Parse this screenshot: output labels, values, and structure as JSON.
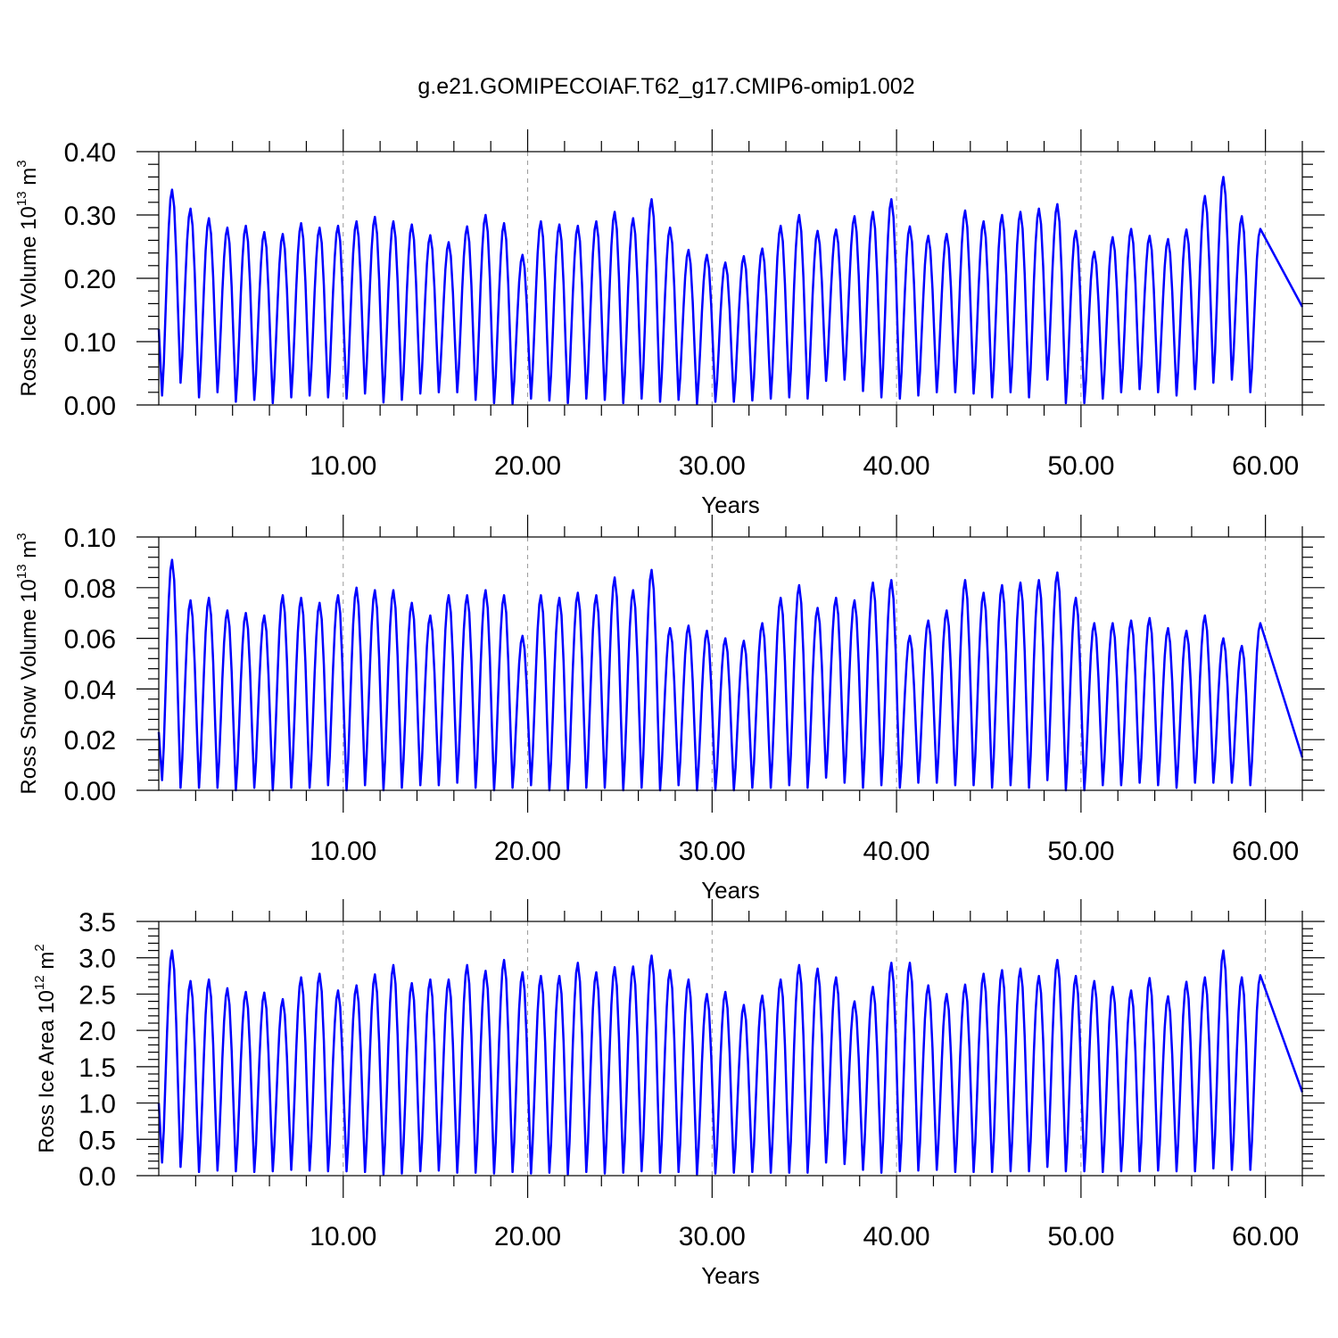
{
  "figure": {
    "title": "g.e21.GOMIPECOIAF.T62_g17.CMIP6-omip1.002"
  },
  "chart_data": [
    {
      "type": "line",
      "ylabel_main": "Ross Ice Volume 10",
      "ylabel_exp": "13",
      "ylabel_unit": " m",
      "ylabel_unit_exp": "3",
      "xlabel": "Years",
      "xlim": [
        0,
        62
      ],
      "ylim": [
        0,
        0.4
      ],
      "xticks": [
        10,
        20,
        30,
        40,
        50,
        60
      ],
      "xtick_labels": [
        "10.00",
        "20.00",
        "30.00",
        "40.00",
        "50.00",
        "60.00"
      ],
      "yticks": [
        0,
        0.1,
        0.2,
        0.3,
        0.4
      ],
      "ytick_labels": [
        "0.00",
        "0.10",
        "0.20",
        "0.30",
        "0.40"
      ],
      "grid": "x-dashed",
      "color": "#0000ff",
      "start_value": 0.12,
      "end_value": 0.155,
      "annual_max": [
        0.34,
        0.31,
        0.295,
        0.28,
        0.283,
        0.273,
        0.27,
        0.287,
        0.28,
        0.283,
        0.29,
        0.297,
        0.29,
        0.285,
        0.268,
        0.257,
        0.282,
        0.3,
        0.287,
        0.237,
        0.29,
        0.285,
        0.283,
        0.29,
        0.305,
        0.295,
        0.325,
        0.28,
        0.245,
        0.237,
        0.225,
        0.235,
        0.247,
        0.283,
        0.3,
        0.275,
        0.277,
        0.298,
        0.305,
        0.325,
        0.282,
        0.267,
        0.27,
        0.307,
        0.29,
        0.3,
        0.305,
        0.31,
        0.317,
        0.275,
        0.242,
        0.265,
        0.278,
        0.267,
        0.262,
        0.277,
        0.33,
        0.36,
        0.298,
        0.278
      ],
      "annual_min": [
        0.015,
        0.035,
        0.012,
        0.02,
        0.005,
        0.008,
        0.003,
        0.012,
        0.015,
        0.012,
        0.01,
        0.018,
        0.004,
        0.008,
        0.018,
        0.02,
        0.02,
        0.008,
        0.003,
        0.002,
        0.01,
        0.007,
        0.003,
        0.01,
        0.008,
        0.003,
        0.01,
        0.005,
        0.008,
        0.002,
        0.005,
        0.005,
        0.007,
        0.01,
        0.012,
        0.01,
        0.038,
        0.04,
        0.022,
        0.012,
        0.01,
        0.015,
        0.02,
        0.02,
        0.018,
        0.012,
        0.02,
        0.012,
        0.04,
        0.003,
        0.003,
        0.01,
        0.02,
        0.025,
        0.02,
        0.015,
        0.025,
        0.035,
        0.04,
        0.02
      ]
    },
    {
      "type": "line",
      "ylabel_main": "Ross Snow Volume 10",
      "ylabel_exp": "13",
      "ylabel_unit": " m",
      "ylabel_unit_exp": "3",
      "xlabel": "Years",
      "xlim": [
        0,
        62
      ],
      "ylim": [
        0,
        0.1
      ],
      "xticks": [
        10,
        20,
        30,
        40,
        50,
        60
      ],
      "xtick_labels": [
        "10.00",
        "20.00",
        "30.00",
        "40.00",
        "50.00",
        "60.00"
      ],
      "yticks": [
        0,
        0.02,
        0.04,
        0.06,
        0.08,
        0.1
      ],
      "ytick_labels": [
        "0.00",
        "0.02",
        "0.04",
        "0.06",
        "0.08",
        "0.10"
      ],
      "grid": "x-dashed",
      "color": "#0000ff",
      "start_value": 0.023,
      "end_value": 0.013,
      "annual_max": [
        0.091,
        0.075,
        0.076,
        0.071,
        0.07,
        0.069,
        0.077,
        0.076,
        0.074,
        0.077,
        0.08,
        0.079,
        0.079,
        0.074,
        0.069,
        0.077,
        0.077,
        0.079,
        0.077,
        0.061,
        0.077,
        0.076,
        0.078,
        0.077,
        0.084,
        0.079,
        0.087,
        0.064,
        0.065,
        0.063,
        0.06,
        0.059,
        0.066,
        0.076,
        0.081,
        0.072,
        0.076,
        0.075,
        0.082,
        0.083,
        0.061,
        0.067,
        0.071,
        0.083,
        0.078,
        0.081,
        0.082,
        0.083,
        0.086,
        0.076,
        0.066,
        0.066,
        0.067,
        0.068,
        0.064,
        0.063,
        0.069,
        0.06,
        0.057,
        0.066
      ],
      "annual_min": [
        0.004,
        0.001,
        0.001,
        0.001,
        0.0,
        0.001,
        0.0,
        0.001,
        0.001,
        0.002,
        0.0,
        0.002,
        0.0,
        0.001,
        0.002,
        0.002,
        0.003,
        0.001,
        0.0,
        0.001,
        0.002,
        0.0,
        0.0,
        0.001,
        0.001,
        0.0,
        0.001,
        0.0,
        0.002,
        0.0,
        0.0,
        0.0,
        0.001,
        0.001,
        0.002,
        0.001,
        0.005,
        0.003,
        0.001,
        0.002,
        0.001,
        0.003,
        0.003,
        0.002,
        0.002,
        0.001,
        0.002,
        0.001,
        0.004,
        0.0,
        0.0,
        0.002,
        0.002,
        0.003,
        0.002,
        0.001,
        0.003,
        0.003,
        0.003,
        0.002
      ]
    },
    {
      "type": "line",
      "ylabel_main": "Ross Ice Area 10",
      "ylabel_exp": "12",
      "ylabel_unit": " m",
      "ylabel_unit_exp": "2",
      "xlabel": "Years",
      "xlim": [
        0,
        62
      ],
      "ylim": [
        0,
        3.5
      ],
      "xticks": [
        10,
        20,
        30,
        40,
        50,
        60
      ],
      "xtick_labels": [
        "10.00",
        "20.00",
        "30.00",
        "40.00",
        "50.00",
        "60.00"
      ],
      "yticks": [
        0,
        0.5,
        1,
        1.5,
        2,
        2.5,
        3,
        3.5
      ],
      "ytick_labels": [
        "0.0",
        "0.5",
        "1.0",
        "1.5",
        "2.0",
        "2.5",
        "3.0",
        "3.5"
      ],
      "grid": "x-dashed",
      "color": "#0000ff",
      "start_value": 1.0,
      "end_value": 1.15,
      "annual_max": [
        3.1,
        2.68,
        2.7,
        2.58,
        2.53,
        2.52,
        2.43,
        2.73,
        2.78,
        2.55,
        2.62,
        2.77,
        2.9,
        2.65,
        2.7,
        2.7,
        2.9,
        2.82,
        2.97,
        2.8,
        2.75,
        2.75,
        2.93,
        2.8,
        2.87,
        2.88,
        3.03,
        2.83,
        2.7,
        2.5,
        2.53,
        2.35,
        2.48,
        2.7,
        2.9,
        2.85,
        2.73,
        2.4,
        2.6,
        2.93,
        2.93,
        2.62,
        2.5,
        2.63,
        2.78,
        2.83,
        2.85,
        2.75,
        2.97,
        2.75,
        2.68,
        2.6,
        2.55,
        2.72,
        2.47,
        2.67,
        2.73,
        3.1,
        2.73,
        2.76
      ],
      "annual_min": [
        0.18,
        0.12,
        0.05,
        0.07,
        0.06,
        0.05,
        0.06,
        0.08,
        0.07,
        0.06,
        0.06,
        0.05,
        0.02,
        0.03,
        0.06,
        0.07,
        0.04,
        0.04,
        0.03,
        0.05,
        0.03,
        0.04,
        0.02,
        0.05,
        0.03,
        0.04,
        0.06,
        0.04,
        0.05,
        0.02,
        0.03,
        0.04,
        0.05,
        0.04,
        0.04,
        0.04,
        0.18,
        0.16,
        0.08,
        0.04,
        0.06,
        0.07,
        0.08,
        0.05,
        0.05,
        0.05,
        0.06,
        0.06,
        0.12,
        0.06,
        0.06,
        0.05,
        0.06,
        0.06,
        0.07,
        0.06,
        0.06,
        0.1,
        0.08,
        0.08
      ]
    }
  ]
}
